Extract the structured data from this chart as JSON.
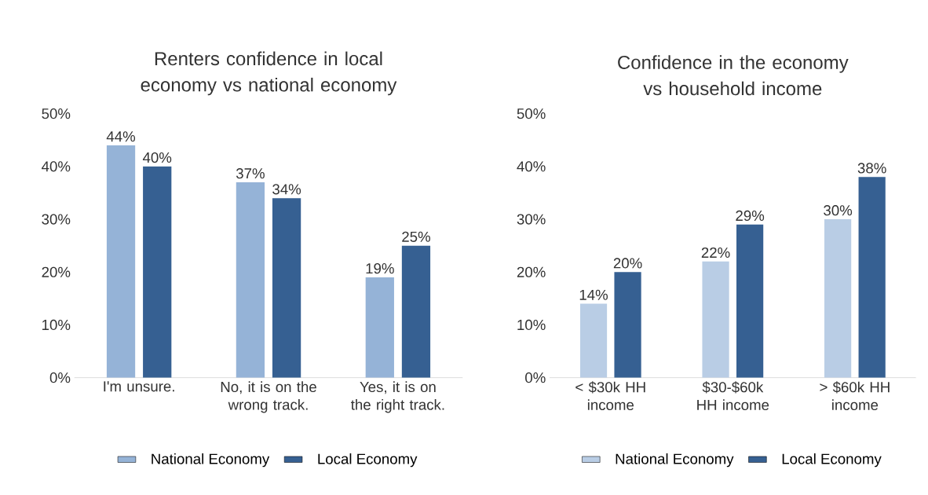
{
  "chart_data": [
    {
      "type": "bar",
      "title": "Renters confidence in local economy vs national economy",
      "categories": [
        "I'm unsure.",
        "No, it is on the wrong track.",
        "Yes, it is on the right track."
      ],
      "series": [
        {
          "name": "National Economy",
          "color": "#95b3d7",
          "values": [
            44,
            37,
            19
          ],
          "value_labels": [
            "44%",
            "37%",
            "19%"
          ]
        },
        {
          "name": "Local Economy",
          "color": "#366092",
          "values": [
            40,
            34,
            25
          ],
          "value_labels": [
            "40%",
            "34%",
            "25%"
          ]
        }
      ],
      "ylim": [
        0,
        50
      ],
      "yticks": [
        {
          "value": 0,
          "label": "0%"
        },
        {
          "value": 10,
          "label": "10%"
        },
        {
          "value": 20,
          "label": "20%"
        },
        {
          "value": 30,
          "label": "30%"
        },
        {
          "value": 40,
          "label": "40%"
        },
        {
          "value": 50,
          "label": "50%"
        }
      ],
      "grid": false,
      "legend": "bottom"
    },
    {
      "type": "bar",
      "title": "Confidence in the economy vs household income",
      "categories": [
        "< $30k HH income",
        "$30-$60k HH income",
        "> $60k HH income"
      ],
      "series": [
        {
          "name": "National Economy",
          "color": "#b9cde5",
          "values": [
            14,
            22,
            30
          ],
          "value_labels": [
            "14%",
            "22%",
            "30%"
          ]
        },
        {
          "name": "Local Economy",
          "color": "#366092",
          "values": [
            20,
            29,
            38
          ],
          "value_labels": [
            "20%",
            "29%",
            "38%"
          ]
        }
      ],
      "ylim": [
        0,
        50
      ],
      "yticks": [
        {
          "value": 0,
          "label": "0%"
        },
        {
          "value": 10,
          "label": "10%"
        },
        {
          "value": 20,
          "label": "20%"
        },
        {
          "value": 30,
          "label": "30%"
        },
        {
          "value": 40,
          "label": "40%"
        },
        {
          "value": 50,
          "label": "50%"
        }
      ],
      "grid": false,
      "legend": "bottom"
    }
  ]
}
